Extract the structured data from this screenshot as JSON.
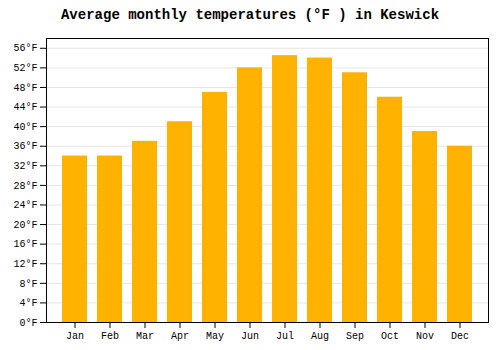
{
  "chart_data": {
    "type": "bar",
    "title": "Average monthly temperatures (°F ) in Keswick",
    "categories": [
      "Jan",
      "Feb",
      "Mar",
      "Apr",
      "May",
      "Jun",
      "Jul",
      "Aug",
      "Sep",
      "Oct",
      "Nov",
      "Dec"
    ],
    "values": [
      34.0,
      34.0,
      37.0,
      41.0,
      47.0,
      52.0,
      54.5,
      54.0,
      51.0,
      46.0,
      39.0,
      36.0
    ],
    "color": "#FFB300",
    "ylim": [
      0,
      58
    ],
    "yticks": [
      {
        "value": 0,
        "label": "0°F"
      },
      {
        "value": 4,
        "label": "4°F"
      },
      {
        "value": 8,
        "label": "8°F"
      },
      {
        "value": 12,
        "label": "12°F"
      },
      {
        "value": 16,
        "label": "16°F"
      },
      {
        "value": 20,
        "label": "20°F"
      },
      {
        "value": 24,
        "label": "24°F"
      },
      {
        "value": 28,
        "label": "28°F"
      },
      {
        "value": 32,
        "label": "32°F"
      },
      {
        "value": 36,
        "label": "36°F"
      },
      {
        "value": 40,
        "label": "40°F"
      },
      {
        "value": 44,
        "label": "44°F"
      },
      {
        "value": 48,
        "label": "48°F"
      },
      {
        "value": 52,
        "label": "52°F"
      },
      {
        "value": 56,
        "label": "56°F"
      }
    ],
    "grid": true
  }
}
